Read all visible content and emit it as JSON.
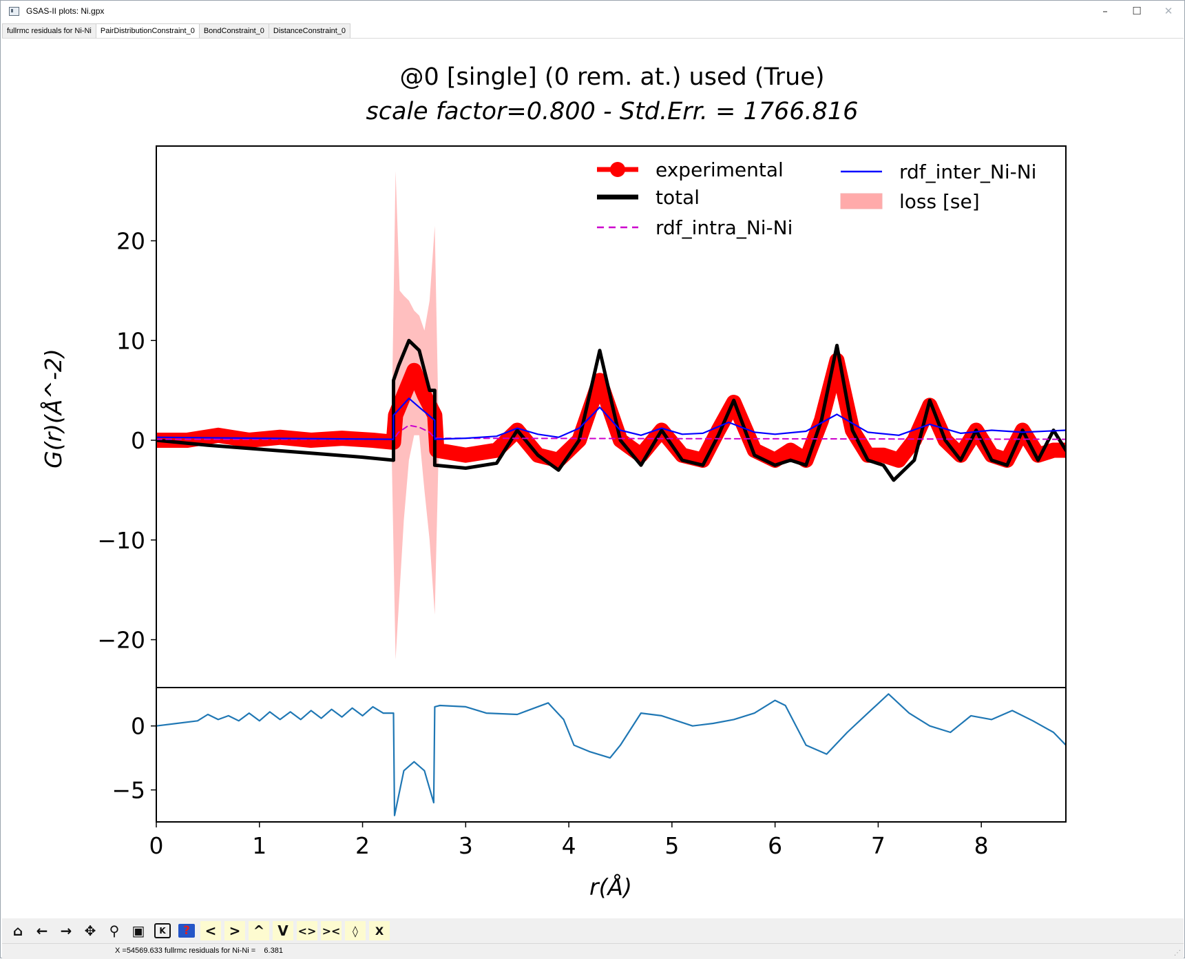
{
  "window": {
    "title": "GSAS-II plots: Ni.gpx",
    "controls": {
      "minimize": "–",
      "maximize": "☐",
      "close": "✕"
    }
  },
  "tabs": [
    {
      "label": "fullrmc residuals for Ni-Ni"
    },
    {
      "label": "PairDistributionConstraint_0"
    },
    {
      "label": "BondConstraint_0"
    },
    {
      "label": "DistanceConstraint_0"
    }
  ],
  "active_tab": 1,
  "toolbar": {
    "items": [
      {
        "icon": "home-icon",
        "glyph": "🏠"
      },
      {
        "icon": "back-arrow-icon",
        "glyph": "🡐"
      },
      {
        "icon": "forward-arrow-icon",
        "glyph": "🡒"
      },
      {
        "icon": "pan-icon",
        "glyph": "✥"
      },
      {
        "icon": "zoom-icon",
        "glyph": "🔍"
      },
      {
        "icon": "save-icon",
        "glyph": "💾"
      },
      {
        "icon": "keyboard-icon",
        "glyph": "K"
      },
      {
        "icon": "help-icon",
        "glyph": "?"
      },
      {
        "icon": "shift-left-icon",
        "glyph": "<"
      },
      {
        "icon": "shift-right-icon",
        "glyph": ">"
      },
      {
        "icon": "shift-up-icon",
        "glyph": "^"
      },
      {
        "icon": "shift-down-icon",
        "glyph": "V"
      },
      {
        "icon": "expand-x-icon",
        "glyph": "<>"
      },
      {
        "icon": "shrink-x-icon",
        "glyph": "><"
      },
      {
        "icon": "expand-y-icon",
        "glyph": "◊"
      },
      {
        "icon": "shrink-y-icon",
        "glyph": "X"
      }
    ]
  },
  "status": {
    "text": "X =54569.633 fullrmc residuals for Ni-Ni =    6.381"
  },
  "chart_data": [
    {
      "type": "line",
      "title_line1": "@0 [single] (0 rem. at.) used (True)",
      "title_line2": "scale factor=0.800 - Std.Err. = 1766.816",
      "xlabel": "",
      "ylabel": "G(r)(Å^-2)",
      "xlim": [
        0,
        8.82
      ],
      "ylim": [
        -24.8,
        29.5
      ],
      "yticks": [
        -20,
        -10,
        0,
        10,
        20
      ],
      "grid": false,
      "legend_placement": "upper-right",
      "legend": [
        {
          "label": "experimental",
          "color": "#ff0000",
          "style": "line-marker"
        },
        {
          "label": "total",
          "color": "#000000",
          "style": "line"
        },
        {
          "label": "rdf_intra_Ni-Ni",
          "color": "#cc00cc",
          "style": "dashed"
        },
        {
          "label": "rdf_inter_Ni-Ni",
          "color": "#0000ff",
          "style": "line"
        },
        {
          "label": "loss [se]",
          "color": "#ffaaaa",
          "style": "area"
        }
      ],
      "series": [
        {
          "name": "experimental",
          "color": "#ff0000",
          "x": [
            0,
            0.3,
            0.6,
            0.9,
            1.2,
            1.5,
            1.8,
            2.1,
            2.3,
            2.32,
            2.4,
            2.5,
            2.6,
            2.7,
            2.72,
            3.0,
            3.3,
            3.5,
            3.7,
            3.9,
            4.1,
            4.3,
            4.5,
            4.7,
            4.9,
            5.1,
            5.3,
            5.45,
            5.6,
            5.8,
            6.0,
            6.15,
            6.3,
            6.45,
            6.6,
            6.75,
            6.9,
            7.05,
            7.2,
            7.35,
            7.5,
            7.65,
            7.8,
            7.95,
            8.1,
            8.25,
            8.4,
            8.55,
            8.7,
            8.82
          ],
          "y": [
            0,
            0,
            0.5,
            0,
            0.3,
            0,
            0.2,
            0,
            -0.2,
            2.5,
            4.5,
            7.0,
            4.5,
            2.5,
            -1,
            -1.5,
            -1,
            1.0,
            -1.5,
            -2.0,
            0,
            6.0,
            0,
            -1.5,
            1.0,
            -1.5,
            -2.0,
            1.0,
            3.8,
            -1.0,
            -2.0,
            -1.0,
            -2.0,
            2.0,
            8.0,
            1.0,
            -1.5,
            -1.5,
            -2.0,
            0,
            3.5,
            0,
            -1.5,
            1.0,
            -1.5,
            -2.0,
            1.0,
            -1.5,
            -1.0,
            -1.0
          ]
        },
        {
          "name": "total",
          "color": "#000000",
          "x": [
            0,
            0.5,
            1.0,
            1.5,
            2.0,
            2.3,
            2.3,
            2.35,
            2.45,
            2.55,
            2.65,
            2.7,
            2.7,
            3.0,
            3.3,
            3.5,
            3.7,
            3.9,
            4.1,
            4.3,
            4.5,
            4.7,
            4.9,
            5.1,
            5.3,
            5.45,
            5.6,
            5.8,
            6.0,
            6.15,
            6.3,
            6.45,
            6.6,
            6.75,
            6.9,
            7.05,
            7.15,
            7.35,
            7.5,
            7.65,
            7.8,
            7.95,
            8.1,
            8.25,
            8.4,
            8.55,
            8.7,
            8.82
          ],
          "y": [
            0,
            -0.5,
            -0.9,
            -1.3,
            -1.7,
            -2.0,
            6.0,
            7.5,
            10.0,
            9.0,
            5.0,
            5.0,
            -2.5,
            -2.8,
            -2.3,
            1.0,
            -1.5,
            -3.0,
            0,
            9.0,
            0,
            -2.5,
            1.0,
            -2.0,
            -2.5,
            0.5,
            4.0,
            -1.5,
            -2.5,
            -2.0,
            -2.5,
            2.0,
            9.5,
            1.0,
            -2.0,
            -2.5,
            -4.0,
            -2.0,
            4.0,
            0,
            -2.0,
            1.0,
            -2.0,
            -2.5,
            1.0,
            -2.0,
            1.0,
            -1.0
          ]
        },
        {
          "name": "rdf_intra_Ni-Ni",
          "color": "#cc00cc",
          "x": [
            0,
            2.3,
            2.35,
            2.45,
            2.55,
            2.65,
            2.7,
            8.82
          ],
          "y": [
            0.1,
            0.1,
            0.8,
            1.5,
            1.3,
            0.8,
            0.2,
            0.1
          ]
        },
        {
          "name": "rdf_inter_Ni-Ni",
          "color": "#0000ff",
          "x": [
            0,
            1.0,
            2.3,
            2.3,
            2.45,
            2.55,
            2.7,
            2.7,
            3.0,
            3.3,
            3.5,
            3.7,
            3.9,
            4.1,
            4.3,
            4.5,
            4.7,
            4.9,
            5.1,
            5.3,
            5.55,
            5.8,
            6.0,
            6.3,
            6.6,
            6.9,
            7.2,
            7.5,
            7.8,
            8.1,
            8.4,
            8.82
          ],
          "y": [
            0.3,
            0.2,
            0.1,
            2.5,
            4.2,
            3.3,
            2.0,
            0.1,
            0.2,
            0.4,
            1.2,
            0.6,
            0.3,
            1.2,
            3.3,
            1.0,
            0.5,
            1.2,
            0.6,
            0.7,
            1.8,
            0.8,
            0.6,
            0.9,
            2.6,
            0.8,
            0.5,
            1.6,
            0.7,
            1.0,
            0.8,
            1.0
          ]
        },
        {
          "name": "loss [se]",
          "color": "#ffaaaa",
          "type": "area",
          "x": [
            2.28,
            2.32,
            2.36,
            2.4,
            2.45,
            2.5,
            2.55,
            2.6,
            2.65,
            2.7,
            2.74
          ],
          "upper": [
            0,
            27.0,
            15.0,
            14.5,
            14.0,
            13.0,
            12.5,
            11.0,
            14.0,
            21.5,
            0
          ],
          "lower": [
            0,
            -22.0,
            -15.0,
            -8.0,
            -2.0,
            0.5,
            0.5,
            -5.0,
            -10.0,
            -17.5,
            0
          ]
        }
      ]
    },
    {
      "type": "line",
      "xlabel": "r(Å)",
      "ylabel": "",
      "xlim": [
        0,
        8.82
      ],
      "ylim": [
        -7.5,
        3.0
      ],
      "xticks": [
        0,
        1,
        2,
        3,
        4,
        5,
        6,
        7,
        8
      ],
      "yticks": [
        -5,
        0
      ],
      "grid": false,
      "series": [
        {
          "name": "",
          "color": "#1f77b4",
          "x": [
            0,
            0.4,
            0.5,
            0.6,
            0.7,
            0.8,
            0.9,
            1.0,
            1.1,
            1.2,
            1.3,
            1.4,
            1.5,
            1.6,
            1.7,
            1.8,
            1.9,
            2.0,
            2.1,
            2.2,
            2.3,
            2.31,
            2.4,
            2.5,
            2.6,
            2.69,
            2.7,
            2.75,
            3.0,
            3.2,
            3.5,
            3.8,
            3.95,
            4.05,
            4.2,
            4.4,
            4.5,
            4.7,
            4.9,
            5.2,
            5.4,
            5.6,
            5.8,
            6.0,
            6.1,
            6.3,
            6.5,
            6.7,
            6.9,
            7.1,
            7.3,
            7.5,
            7.7,
            7.9,
            8.1,
            8.3,
            8.5,
            8.7,
            8.82
          ],
          "y": [
            0,
            0.4,
            0.9,
            0.5,
            0.8,
            0.4,
            1.0,
            0.4,
            1.1,
            0.5,
            1.1,
            0.5,
            1.2,
            0.6,
            1.3,
            0.7,
            1.4,
            0.8,
            1.5,
            1.0,
            1.0,
            -7.0,
            -3.5,
            -2.8,
            -3.5,
            -6.0,
            1.5,
            1.6,
            1.5,
            1.0,
            0.9,
            1.8,
            0.5,
            -1.5,
            -2.0,
            -2.5,
            -1.5,
            1.0,
            0.8,
            0.0,
            0.2,
            0.5,
            1.0,
            2.0,
            1.6,
            -1.5,
            -2.2,
            -0.5,
            1.0,
            2.5,
            1.0,
            0.0,
            -0.5,
            0.8,
            0.5,
            1.2,
            0.4,
            -0.5,
            -1.5
          ]
        }
      ]
    }
  ]
}
